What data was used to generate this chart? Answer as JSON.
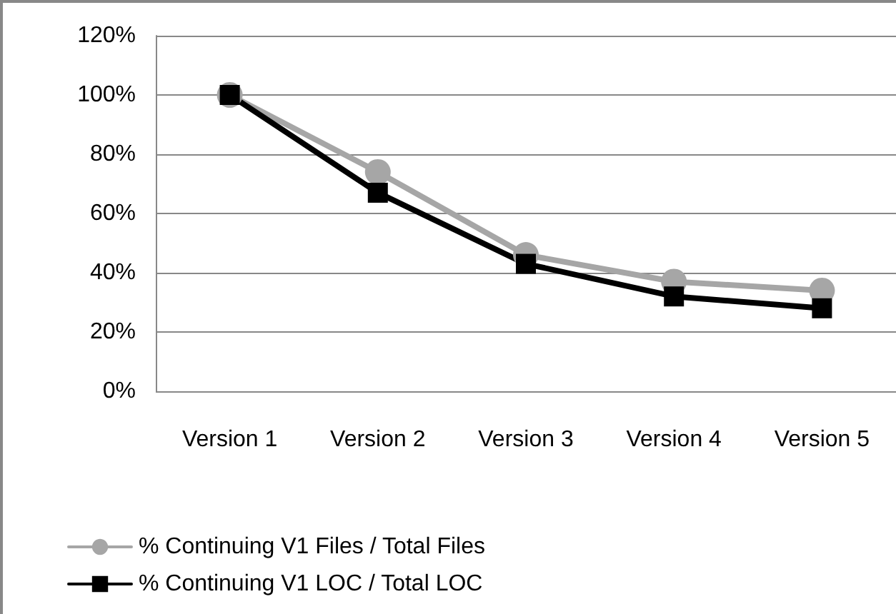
{
  "chart_data": {
    "type": "line",
    "categories": [
      "Version 1",
      "Version 2",
      "Version 3",
      "Version 4",
      "Version 5"
    ],
    "series": [
      {
        "name": "% Continuing V1 Files / Total Files",
        "color": "#a6a6a6",
        "marker": "circle",
        "values": [
          100,
          74,
          46,
          37,
          34
        ]
      },
      {
        "name": "% Continuing V1 LOC / Total LOC",
        "color": "#000000",
        "marker": "square",
        "values": [
          100,
          67,
          43,
          32,
          28
        ]
      }
    ],
    "ylim": [
      0,
      120
    ],
    "yticks": [
      {
        "value": 0,
        "label": "0%"
      },
      {
        "value": 20,
        "label": "20%"
      },
      {
        "value": 40,
        "label": "40%"
      },
      {
        "value": 60,
        "label": "60%"
      },
      {
        "value": 80,
        "label": "80%"
      },
      {
        "value": 100,
        "label": "100%"
      },
      {
        "value": 120,
        "label": "120%"
      }
    ],
    "grid": "y",
    "legend": "bottom"
  }
}
